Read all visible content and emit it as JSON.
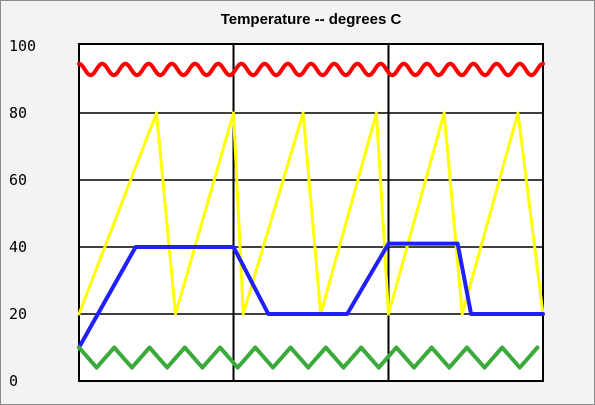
{
  "chart_data": {
    "type": "line",
    "title": "Temperature -- degrees C",
    "xlabel": "",
    "ylabel": "",
    "xlim": [
      0,
      100
    ],
    "ylim": [
      0,
      100
    ],
    "y_ticks": [
      0,
      20,
      40,
      60,
      80,
      100
    ],
    "y_tick_labels": [
      "0",
      "20",
      "40",
      "60",
      "80",
      "100"
    ],
    "x_gridlines": [
      33.3,
      66.7
    ],
    "grid": true,
    "legend": "none",
    "series": [
      {
        "color": "#ff0000",
        "style": "wave",
        "center": 93,
        "amplitude": 1.7,
        "period": 5,
        "x": [
          0,
          100
        ]
      },
      {
        "color": "#ffff00",
        "x": [
          0,
          16.7,
          20.8,
          33.3,
          35.4,
          48.3,
          52.1,
          64.1,
          66.7,
          78.7,
          82.6,
          94.6,
          100
        ],
        "values": [
          20,
          80,
          20,
          80,
          20,
          80,
          20,
          80,
          20,
          80,
          20,
          80,
          20
        ]
      },
      {
        "color": "#2020ff",
        "x": [
          0,
          12.2,
          33.3,
          40.8,
          57.8,
          66.7,
          81.6,
          84.5,
          100
        ],
        "values": [
          10,
          40,
          40,
          20,
          20,
          41,
          41,
          20,
          20
        ]
      },
      {
        "color": "#3aaa3a",
        "style": "zigzag",
        "low": 4,
        "high": 10,
        "period": 7.6,
        "x": [
          0,
          100
        ]
      }
    ]
  }
}
